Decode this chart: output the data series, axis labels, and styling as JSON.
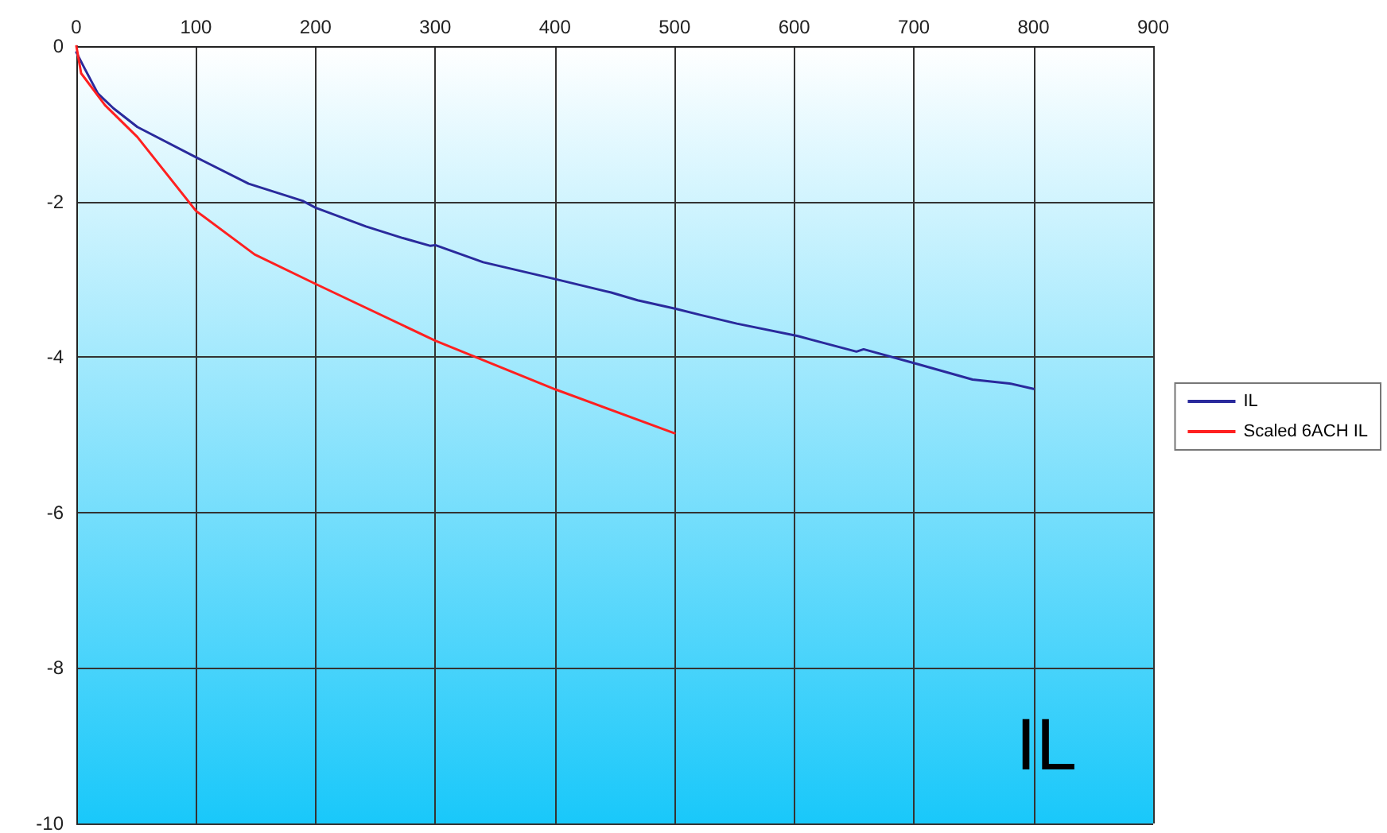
{
  "chart_data": {
    "type": "line",
    "title": "IL",
    "xlim": [
      0,
      900
    ],
    "xticks": [
      0,
      100,
      200,
      300,
      400,
      500,
      600,
      700,
      800,
      900
    ],
    "ylim": [
      -10,
      0
    ],
    "yticks": [
      -10,
      -8,
      -6,
      -4,
      -2,
      0
    ],
    "grid": true,
    "legend": "right",
    "marker": "none",
    "line_style": "solid",
    "series": [
      {
        "name": "IL",
        "color": "#2a2a9c",
        "x": [
          0,
          7,
          18,
          31,
          51,
          100,
          144,
          189,
          200,
          242,
          273,
          296,
          300,
          340,
          401,
          447,
          469,
          501,
          522,
          552,
          603,
          652,
          658,
          703,
          749,
          780,
          800
        ],
        "values": [
          -0.08,
          -0.29,
          -0.61,
          -0.8,
          -1.04,
          -1.43,
          -1.77,
          -1.99,
          -2.08,
          -2.32,
          -2.47,
          -2.57,
          -2.56,
          -2.78,
          -3,
          -3.17,
          -3.27,
          -3.38,
          -3.46,
          -3.57,
          -3.73,
          -3.93,
          -3.9,
          -4.09,
          -4.29,
          -4.34,
          -4.41
        ]
      },
      {
        "name": "Scaled 6ACH IL",
        "color": "#ff2020",
        "x": [
          0,
          4,
          24,
          51,
          100,
          149,
          200,
          300,
          401,
          500
        ],
        "values": [
          0,
          -0.35,
          -0.76,
          -1.17,
          -2.12,
          -2.68,
          -3.06,
          -3.79,
          -4.42,
          -4.98
        ]
      }
    ]
  }
}
